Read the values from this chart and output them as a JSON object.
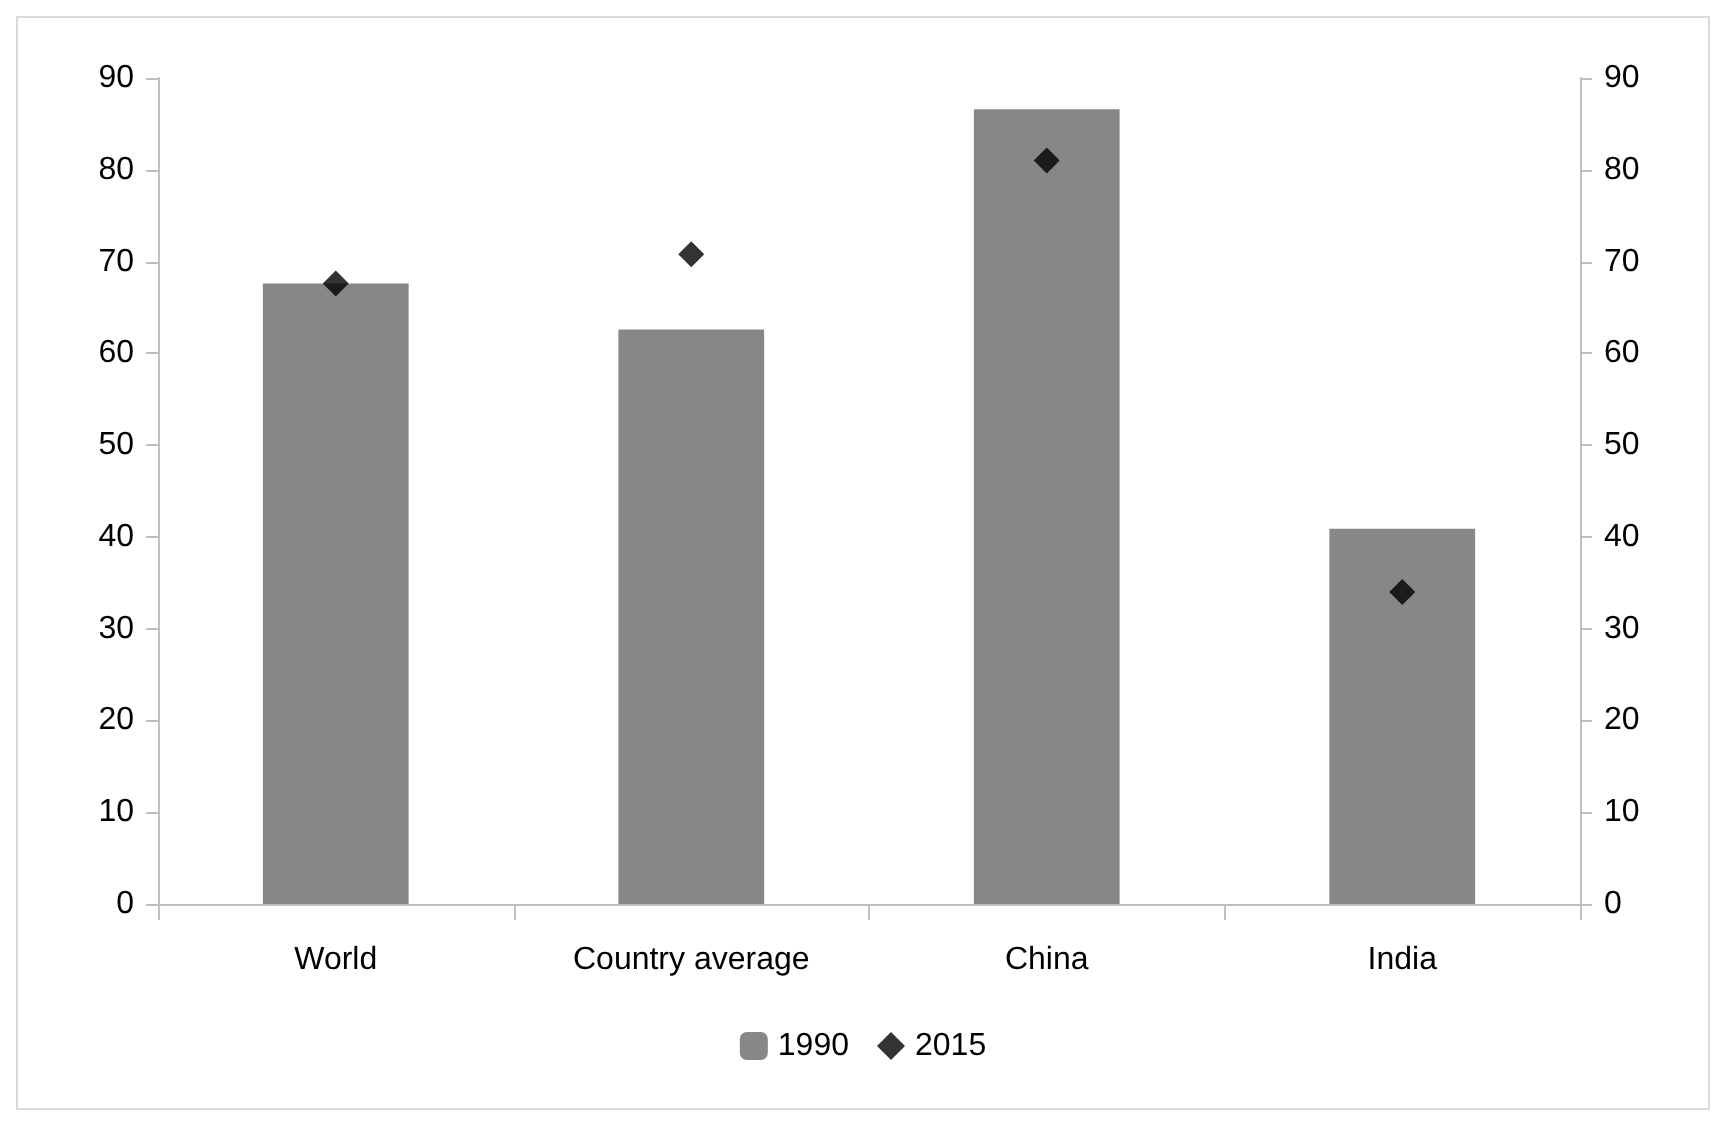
{
  "chart_data": {
    "type": "bar",
    "categories": [
      "World",
      "Country average",
      "China",
      "India"
    ],
    "series": [
      {
        "name": "1990",
        "color": "#878787",
        "values": [
          67.6,
          62.6,
          86.6,
          40.9
        ]
      },
      {
        "name": "2015",
        "type": "scatter",
        "marker": "diamond",
        "color": "#000000",
        "values": [
          67.6,
          70.8,
          81.0,
          34.0
        ]
      }
    ],
    "ylim": [
      0,
      90
    ],
    "yticks": [
      0,
      10,
      20,
      30,
      40,
      50,
      60,
      70,
      80,
      90
    ],
    "y2lim": [
      0,
      90
    ],
    "y2ticks": [
      0,
      10,
      20,
      30,
      40,
      50,
      60,
      70,
      80,
      90
    ],
    "grid": false,
    "legend": "bottom"
  }
}
